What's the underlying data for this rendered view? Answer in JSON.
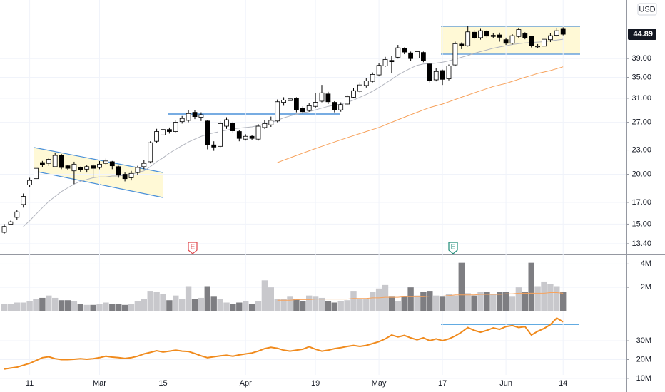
{
  "chart_data": [
    {
      "type": "candlestick",
      "currency": "USD",
      "log_scale": true,
      "grid": true,
      "up_color": "#ffffff",
      "down_color": "#000000",
      "event_markers": [
        "E",
        "E"
      ],
      "categories": [
        null,
        null,
        null,
        null,
        "11",
        null,
        null,
        null,
        null,
        null,
        null,
        null,
        null,
        null,
        null,
        "Mar",
        null,
        null,
        null,
        null,
        null,
        null,
        null,
        null,
        null,
        "15",
        null,
        null,
        null,
        null,
        null,
        null,
        null,
        null,
        null,
        null,
        null,
        null,
        "Apr",
        null,
        null,
        null,
        null,
        null,
        null,
        null,
        null,
        null,
        null,
        "19",
        null,
        null,
        null,
        null,
        null,
        null,
        null,
        null,
        null,
        "May",
        null,
        null,
        null,
        null,
        null,
        null,
        null,
        null,
        null,
        "17",
        null,
        null,
        null,
        null,
        null,
        null,
        null,
        null,
        null,
        "Jun",
        null,
        null,
        null,
        null,
        null,
        null,
        null,
        null,
        "14"
      ],
      "open": [
        14.3,
        15.0,
        15.6,
        16.8,
        18.8,
        19.5,
        21.4,
        21.3,
        20.9,
        22.3,
        21.0,
        20.4,
        20.8,
        20.6,
        21.0,
        20.8,
        21.3,
        21.5,
        20.9,
        20.0,
        19.6,
        20.2,
        20.9,
        21.5,
        24.2,
        25.1,
        25.9,
        25.6,
        27.1,
        27.3,
        28.6,
        27.8,
        27.2,
        23.7,
        23.5,
        26.4,
        26.9,
        25.6,
        24.5,
        24.9,
        24.5,
        26.2,
        26.6,
        27.2,
        30.3,
        30.6,
        31.0,
        29.3,
        28.9,
        29.6,
        30.5,
        31.8,
        30.3,
        29.0,
        30.0,
        31.2,
        32.3,
        33.4,
        34.2,
        35.5,
        37.4,
        38.6,
        39.3,
        41.4,
        40.3,
        39.1,
        40.4,
        37.8,
        34.5,
        36.4,
        34.7,
        37.6,
        42.4,
        42.0,
        45.4,
        44.0,
        45.6,
        44.3,
        44.7,
        43.5,
        42.6,
        44.3,
        45.0,
        44.3,
        41.8,
        41.9,
        43.5,
        44.6,
        46.4
      ],
      "high": [
        15.0,
        15.3,
        16.3,
        17.9,
        19.6,
        21.0,
        21.6,
        22.0,
        22.6,
        22.5,
        21.1,
        21.5,
        20.9,
        21.1,
        21.2,
        21.6,
        21.9,
        21.6,
        21.0,
        20.2,
        20.4,
        21.0,
        21.7,
        24.2,
        26.0,
        26.4,
        26.2,
        27.3,
        28.0,
        29.0,
        28.9,
        28.6,
        27.4,
        24.2,
        27.2,
        27.8,
        27.1,
        25.8,
        25.2,
        25.1,
        26.7,
        27.3,
        27.9,
        30.8,
        31.2,
        31.4,
        31.2,
        29.6,
        30.2,
        32.0,
        33.5,
        32.2,
        30.5,
        30.3,
        31.6,
        32.9,
        34.0,
        34.8,
        36.0,
        38.0,
        39.4,
        39.6,
        42.2,
        41.6,
        40.6,
        41.3,
        40.6,
        37.9,
        37.0,
        36.6,
        37.7,
        43.0,
        42.8,
        47.0,
        46.0,
        46.5,
        46.0,
        45.2,
        45.3,
        44.0,
        44.9,
        46.6,
        45.4,
        44.5,
        42.4,
        44.1,
        45.2,
        46.6,
        46.7
      ],
      "low": [
        14.2,
        15.0,
        15.4,
        16.5,
        18.6,
        19.4,
        20.8,
        21.0,
        20.8,
        20.6,
        20.5,
        18.9,
        20.3,
        20.2,
        19.6,
        20.6,
        21.1,
        20.6,
        19.6,
        19.2,
        19.3,
        19.9,
        20.6,
        21.3,
        24.0,
        24.6,
        25.3,
        25.4,
        26.8,
        27.0,
        27.5,
        27.2,
        23.1,
        22.9,
        23.3,
        26.0,
        25.4,
        24.2,
        24.3,
        24.4,
        24.3,
        26.0,
        26.3,
        27.0,
        29.7,
        30.0,
        28.6,
        28.4,
        28.7,
        29.3,
        30.3,
        30.0,
        28.6,
        28.7,
        29.8,
        31.0,
        32.0,
        33.0,
        34.0,
        35.2,
        37.2,
        35.8,
        39.0,
        40.0,
        38.5,
        38.8,
        38.2,
        34.0,
        34.2,
        33.5,
        34.4,
        37.3,
        41.2,
        41.8,
        43.6,
        43.5,
        43.8,
        43.9,
        43.0,
        42.2,
        42.3,
        44.0,
        43.6,
        41.6,
        41.5,
        41.7,
        42.9,
        44.3,
        44.6
      ],
      "close": [
        14.8,
        15.2,
        16.1,
        17.6,
        19.3,
        20.7,
        21.1,
        21.8,
        22.3,
        20.8,
        20.7,
        21.2,
        20.5,
        20.9,
        20.7,
        21.2,
        21.6,
        21.0,
        19.9,
        19.5,
        20.1,
        20.8,
        21.3,
        24.0,
        25.6,
        25.9,
        25.6,
        27.0,
        27.6,
        28.4,
        27.9,
        28.2,
        23.7,
        23.4,
        26.8,
        27.4,
        25.7,
        24.6,
        24.9,
        24.6,
        26.4,
        26.8,
        27.3,
        30.4,
        30.7,
        30.9,
        29.0,
        28.7,
        29.7,
        30.3,
        32.0,
        30.4,
        29.0,
        29.9,
        31.3,
        32.4,
        33.5,
        34.3,
        35.6,
        37.5,
        38.8,
        38.3,
        41.5,
        40.5,
        39.0,
        40.6,
        38.6,
        34.4,
        36.2,
        34.6,
        37.4,
        42.5,
        42.0,
        45.5,
        44.0,
        45.8,
        44.4,
        44.6,
        44.1,
        42.6,
        44.5,
        46.1,
        44.0,
        42.0,
        41.9,
        43.6,
        44.5,
        45.8,
        44.89
      ],
      "overlays": [
        {
          "color": "#b2b5be",
          "values": [
            null,
            null,
            null,
            14.8,
            15.3,
            15.9,
            16.5,
            17.1,
            17.6,
            18.1,
            18.5,
            18.9,
            19.2,
            19.4,
            19.6,
            19.7,
            19.7,
            19.8,
            19.8,
            19.9,
            20.0,
            20.2,
            20.4,
            20.9,
            21.5,
            22.0,
            22.6,
            23.1,
            23.6,
            24.1,
            24.5,
            24.9,
            25.2,
            25.4,
            25.6,
            25.8,
            26.0,
            26.1,
            26.2,
            26.3,
            26.5,
            26.7,
            27.0,
            27.3,
            27.7,
            28.0,
            28.3,
            28.5,
            28.7,
            29.0,
            29.3,
            29.6,
            29.8,
            30.0,
            30.3,
            30.7,
            31.2,
            31.7,
            32.3,
            33.0,
            33.8,
            34.6,
            35.5,
            36.2,
            36.9,
            37.5,
            37.8,
            37.9,
            38.0,
            38.2,
            38.5,
            38.9,
            39.3,
            39.7,
            40.2,
            40.6,
            41.0,
            41.4,
            41.7,
            42.0,
            42.3,
            42.5,
            42.7,
            42.8,
            42.9,
            43.0,
            43.2,
            43.4,
            43.6
          ]
        },
        {
          "color": "#f7a25c",
          "values": [
            null,
            null,
            null,
            null,
            null,
            null,
            null,
            null,
            null,
            null,
            null,
            null,
            null,
            null,
            null,
            null,
            null,
            null,
            null,
            null,
            null,
            null,
            null,
            null,
            null,
            null,
            null,
            null,
            null,
            null,
            null,
            null,
            null,
            null,
            null,
            null,
            null,
            null,
            null,
            null,
            null,
            null,
            null,
            21.4,
            21.7,
            22.0,
            22.3,
            22.6,
            22.9,
            23.2,
            23.5,
            23.8,
            24.1,
            24.4,
            24.7,
            25.0,
            25.3,
            25.6,
            25.9,
            26.2,
            26.6,
            27.0,
            27.4,
            27.8,
            28.2,
            28.6,
            29.0,
            29.4,
            29.7,
            30.0,
            30.4,
            30.8,
            31.2,
            31.6,
            32.0,
            32.4,
            32.8,
            33.2,
            33.5,
            33.8,
            34.2,
            34.6,
            35.0,
            35.4,
            35.8,
            36.1,
            36.4,
            36.8,
            37.2
          ]
        }
      ],
      "ylim": [
        12.59,
        54.7
      ],
      "yticks": [
        {
          "value": 13.4,
          "label": "13.40"
        },
        {
          "value": 15,
          "label": "15.00"
        },
        {
          "value": 17,
          "label": "17.00"
        },
        {
          "value": 20,
          "label": "20.00"
        },
        {
          "value": 23,
          "label": "23.00"
        },
        {
          "value": 27,
          "label": "27.00"
        },
        {
          "value": 31,
          "label": "31.00"
        },
        {
          "value": 35,
          "label": "35.00"
        },
        {
          "value": 39,
          "label": "39.00"
        }
      ]
    },
    {
      "type": "bar",
      "grid": true,
      "up_color": "#c8c8cc",
      "down_color": "#7e7e82",
      "values": [
        0.6,
        0.6,
        0.7,
        0.7,
        0.8,
        1.0,
        1.1,
        1.3,
        1.1,
        0.9,
        0.9,
        0.8,
        0.6,
        0.5,
        0.5,
        0.6,
        0.7,
        0.6,
        0.6,
        0.5,
        0.6,
        0.8,
        1.0,
        1.7,
        1.6,
        1.4,
        0.9,
        1.3,
        1.0,
        2.1,
        1.0,
        1.1,
        2.1,
        1.2,
        1.0,
        0.7,
        0.6,
        0.7,
        0.8,
        0.6,
        0.8,
        2.6,
        2.0,
        1.0,
        1.0,
        1.2,
        1.0,
        0.8,
        1.3,
        1.2,
        1.1,
        0.8,
        0.7,
        0.8,
        0.9,
        1.7,
        1.0,
        1.0,
        1.6,
        1.9,
        2.2,
        1.2,
        0.8,
        1.2,
        2.0,
        1.3,
        1.6,
        1.7,
        1.3,
        1.2,
        1.4,
        1.3,
        4.1,
        1.5,
        1.3,
        1.6,
        1.6,
        1.4,
        1.6,
        1.6,
        1.2,
        2.0,
        1.6,
        4.1,
        2.1,
        2.5,
        2.3,
        2.1,
        1.6
      ],
      "overlay": {
        "color": "#f7a25c",
        "values": [
          null,
          null,
          null,
          null,
          null,
          null,
          null,
          null,
          null,
          null,
          null,
          null,
          null,
          null,
          null,
          null,
          null,
          null,
          null,
          null,
          null,
          null,
          null,
          null,
          null,
          null,
          null,
          null,
          null,
          null,
          null,
          null,
          null,
          null,
          null,
          null,
          null,
          null,
          null,
          null,
          null,
          null,
          null,
          0.9,
          0.9,
          0.9,
          0.95,
          0.95,
          0.95,
          1.0,
          1.0,
          1.0,
          1.0,
          1.0,
          1.0,
          1.05,
          1.05,
          1.05,
          1.1,
          1.1,
          1.15,
          1.15,
          1.15,
          1.2,
          1.2,
          1.2,
          1.2,
          1.25,
          1.25,
          1.25,
          1.3,
          1.35,
          1.35,
          1.35,
          1.35,
          1.4,
          1.4,
          1.4,
          1.4,
          1.45,
          1.45,
          1.5,
          1.5,
          1.5,
          1.5,
          1.5,
          1.55,
          1.55,
          1.5
        ]
      },
      "ylim": [
        0,
        4.75
      ],
      "yticks": [
        {
          "value": 2,
          "label": "2M"
        },
        {
          "value": 4,
          "label": "4M"
        }
      ]
    },
    {
      "type": "line",
      "grid": true,
      "color": "#f08a1c",
      "values": [
        15,
        15.5,
        16,
        17,
        18,
        19.5,
        21,
        21.5,
        20.5,
        20,
        20,
        20.2,
        20.5,
        20.2,
        20.5,
        21,
        21.8,
        21.3,
        21,
        20.6,
        21,
        21.8,
        23,
        23.8,
        24.7,
        24,
        24.5,
        25,
        24.5,
        24.3,
        23.2,
        22,
        21,
        21.5,
        22,
        22.3,
        21.8,
        22.5,
        23,
        23.5,
        24.5,
        25.8,
        26.5,
        26,
        25,
        24.5,
        25,
        25.5,
        26.8,
        25.5,
        24.5,
        25,
        25.8,
        26.3,
        27,
        27.5,
        27,
        27.5,
        28.5,
        29.5,
        31,
        33,
        32,
        32.8,
        31.5,
        30.5,
        31.5,
        30,
        31,
        30,
        31,
        32.5,
        34.5,
        37,
        35.5,
        34.5,
        35.5,
        36.8,
        36,
        37.5,
        38,
        37,
        37.5,
        33,
        35,
        36.5,
        38.5,
        42,
        40
      ],
      "ylim": [
        2.8,
        45.5
      ],
      "yticks": [
        {
          "value": 10,
          "label": "10M"
        },
        {
          "value": 20,
          "label": "20M"
        },
        {
          "value": 30,
          "label": "30M"
        }
      ]
    }
  ]
}
